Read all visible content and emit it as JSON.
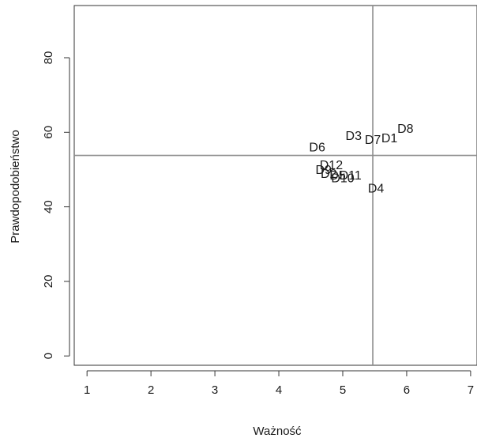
{
  "chart_data": {
    "type": "scatter",
    "title": "",
    "xlabel": "Ważność",
    "ylabel": "Prawdopodobieństwo",
    "xlim": [
      0.8,
      7.1
    ],
    "ylim": [
      -2.5,
      94
    ],
    "xticks": [
      1,
      2,
      3,
      4,
      5,
      6,
      7
    ],
    "yticks": [
      0,
      20,
      40,
      60,
      80
    ],
    "grid": false,
    "reference_lines": {
      "x": 5.47,
      "y": 53.8
    },
    "points": [
      {
        "label": "D8",
        "x": 5.98,
        "y": 60.8
      },
      {
        "label": "D1",
        "x": 5.73,
        "y": 58.3
      },
      {
        "label": "D7",
        "x": 5.47,
        "y": 57.8
      },
      {
        "label": "D3",
        "x": 5.17,
        "y": 58.9
      },
      {
        "label": "D6",
        "x": 4.6,
        "y": 55.8
      },
      {
        "label": "D12",
        "x": 4.82,
        "y": 51.0
      },
      {
        "label": "D9",
        "x": 4.7,
        "y": 49.8
      },
      {
        "label": "D2",
        "x": 4.78,
        "y": 48.7
      },
      {
        "label": "D5",
        "x": 4.92,
        "y": 48.3
      },
      {
        "label": "D11",
        "x": 5.12,
        "y": 48.3
      },
      {
        "label": "D10",
        "x": 5.0,
        "y": 47.5
      },
      {
        "label": "D4",
        "x": 5.52,
        "y": 44.8
      }
    ]
  }
}
